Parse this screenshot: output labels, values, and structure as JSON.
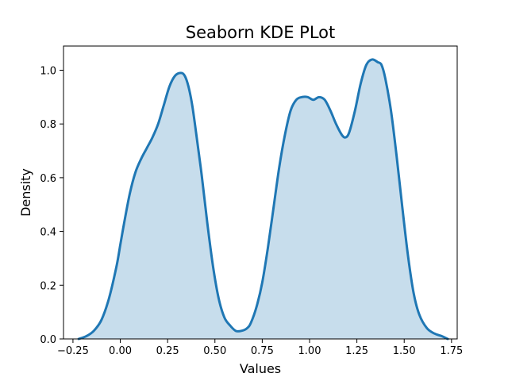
{
  "chart_data": {
    "type": "area",
    "title": "Seaborn KDE PLot",
    "xlabel": "Values",
    "ylabel": "Density",
    "xlim": [
      -0.3,
      1.78
    ],
    "ylim": [
      0,
      1.09
    ],
    "xticks": [
      -0.25,
      0.0,
      0.25,
      0.5,
      0.75,
      1.0,
      1.25,
      1.5,
      1.75
    ],
    "xtick_labels": [
      "−0.25",
      "0.00",
      "0.25",
      "0.50",
      "0.75",
      "1.00",
      "1.25",
      "1.50",
      "1.75"
    ],
    "yticks": [
      0.0,
      0.2,
      0.4,
      0.6,
      0.8,
      1.0
    ],
    "ytick_labels": [
      "0.0",
      "0.2",
      "0.4",
      "0.6",
      "0.8",
      "1.0"
    ],
    "grid": false,
    "series": [
      {
        "line_color": "#1f77b4",
        "fill_color": "#1f77b4",
        "x": [
          -0.22,
          -0.18,
          -0.14,
          -0.1,
          -0.06,
          -0.02,
          0.0,
          0.02,
          0.05,
          0.08,
          0.11,
          0.14,
          0.17,
          0.2,
          0.23,
          0.26,
          0.29,
          0.32,
          0.34,
          0.36,
          0.38,
          0.4,
          0.43,
          0.46,
          0.49,
          0.52,
          0.55,
          0.58,
          0.61,
          0.64,
          0.67,
          0.69,
          0.72,
          0.75,
          0.78,
          0.81,
          0.84,
          0.87,
          0.9,
          0.93,
          0.96,
          0.99,
          1.02,
          1.05,
          1.08,
          1.11,
          1.14,
          1.17,
          1.19,
          1.21,
          1.24,
          1.27,
          1.3,
          1.33,
          1.36,
          1.38,
          1.4,
          1.43,
          1.46,
          1.49,
          1.52,
          1.55,
          1.58,
          1.62,
          1.66,
          1.7,
          1.73
        ],
        "y": [
          0.0,
          0.01,
          0.03,
          0.07,
          0.15,
          0.27,
          0.35,
          0.43,
          0.54,
          0.62,
          0.67,
          0.71,
          0.75,
          0.8,
          0.87,
          0.94,
          0.98,
          0.99,
          0.98,
          0.94,
          0.87,
          0.77,
          0.61,
          0.43,
          0.27,
          0.15,
          0.08,
          0.05,
          0.03,
          0.03,
          0.04,
          0.06,
          0.12,
          0.21,
          0.34,
          0.49,
          0.64,
          0.76,
          0.85,
          0.89,
          0.9,
          0.9,
          0.89,
          0.9,
          0.89,
          0.85,
          0.8,
          0.76,
          0.75,
          0.77,
          0.85,
          0.95,
          1.02,
          1.04,
          1.03,
          1.02,
          0.97,
          0.85,
          0.68,
          0.49,
          0.31,
          0.17,
          0.09,
          0.04,
          0.02,
          0.01,
          0.0
        ]
      }
    ]
  }
}
